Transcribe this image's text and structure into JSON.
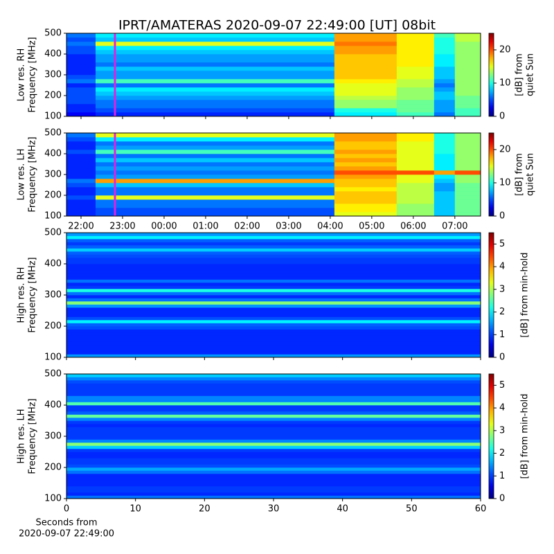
{
  "chart_data": [
    {
      "type": "heatmap",
      "title": "IPRT/AMATERAS 2020-09-07 22:49:00 [UT]   08bit",
      "ylabel": [
        "Low res. RH",
        "Frequency [MHz]"
      ],
      "xlim": [
        21.65,
        31.62
      ],
      "ylim": [
        100,
        500
      ],
      "yticks": [
        100,
        200,
        300,
        400,
        500
      ],
      "x_edges": [
        21.65,
        22.35,
        28.1,
        29.6,
        30.5,
        31.0,
        31.62
      ],
      "cursor": {
        "x": 22.817,
        "color": "#e020e0"
      },
      "colorbar": {
        "label": [
          "[dB] from",
          "quiet Sun"
        ],
        "lim": [
          0,
          25
        ],
        "ticks": [
          0,
          10,
          20
        ],
        "colormap": "jet"
      },
      "values": [
        [
          3,
          4,
          9,
          11,
          6,
          11
        ],
        [
          4,
          5,
          10,
          12,
          7,
          11
        ],
        [
          4,
          6,
          13,
          12,
          7,
          12
        ],
        [
          5,
          6,
          13,
          12,
          7,
          12
        ],
        [
          5,
          7,
          14,
          13,
          8,
          12
        ],
        [
          5,
          8,
          15,
          13,
          8,
          13
        ],
        [
          5,
          9,
          15,
          13,
          7,
          13
        ],
        [
          4,
          6,
          15,
          14,
          6,
          13
        ],
        [
          6,
          11,
          16,
          14,
          7,
          13
        ],
        [
          5,
          7,
          17,
          15,
          8,
          13
        ],
        [
          4,
          7,
          17,
          15,
          8,
          13
        ],
        [
          4,
          8,
          17,
          15,
          8,
          13
        ],
        [
          4,
          6,
          17,
          16,
          9,
          13
        ],
        [
          4,
          7,
          17,
          16,
          9,
          13
        ],
        [
          4,
          7,
          17,
          16,
          9,
          13
        ],
        [
          5,
          8,
          18,
          16,
          10,
          13
        ],
        [
          5,
          9,
          18,
          16,
          10,
          13
        ],
        [
          6,
          15,
          19,
          16,
          10,
          13
        ],
        [
          5,
          8,
          18,
          16,
          10,
          14
        ],
        [
          6,
          9,
          18,
          16,
          11,
          14
        ]
      ]
    },
    {
      "type": "heatmap",
      "ylabel": [
        "Low res. LH",
        "Frequency [MHz]"
      ],
      "xlim": [
        21.65,
        31.62
      ],
      "ylim": [
        100,
        500
      ],
      "yticks": [
        100,
        200,
        300,
        400,
        500
      ],
      "xticks": [
        {
          "value": 22,
          "label": "22:00"
        },
        {
          "value": 23,
          "label": "23:00"
        },
        {
          "value": 24,
          "label": "00:00"
        },
        {
          "value": 25,
          "label": "01:00"
        },
        {
          "value": 26,
          "label": "02:00"
        },
        {
          "value": 27,
          "label": "03:00"
        },
        {
          "value": 28,
          "label": "04:00"
        },
        {
          "value": 29,
          "label": "05:00"
        },
        {
          "value": 30,
          "label": "06:00"
        },
        {
          "value": 31,
          "label": "07:00"
        }
      ],
      "x_edges": [
        21.65,
        22.35,
        28.1,
        29.6,
        30.5,
        31.0,
        31.62
      ],
      "cursor": {
        "x": 22.817,
        "color": "#e020e0"
      },
      "colorbar": {
        "label": [
          "[dB] from",
          "quiet Sun"
        ],
        "lim": [
          0,
          25
        ],
        "ticks": [
          0,
          10,
          20
        ],
        "colormap": "jet"
      },
      "values": [
        [
          4,
          5,
          15,
          13,
          8,
          12
        ],
        [
          4,
          5,
          16,
          13,
          8,
          12
        ],
        [
          4,
          6,
          16,
          13,
          8,
          12
        ],
        [
          4,
          6,
          17,
          14,
          8,
          12
        ],
        [
          5,
          15,
          17,
          14,
          8,
          12
        ],
        [
          4,
          6,
          17,
          14,
          8,
          12
        ],
        [
          4,
          6,
          16,
          14,
          7,
          12
        ],
        [
          5,
          8,
          17,
          14,
          7,
          12
        ],
        [
          6,
          18,
          17,
          15,
          8,
          13
        ],
        [
          4,
          7,
          18,
          15,
          9,
          13
        ],
        [
          4,
          6,
          20,
          20,
          18,
          20
        ],
        [
          4,
          7,
          18,
          15,
          9,
          13
        ],
        [
          4,
          6,
          17,
          15,
          9,
          13
        ],
        [
          4,
          8,
          18,
          15,
          9,
          13
        ],
        [
          4,
          6,
          17,
          15,
          9,
          13
        ],
        [
          5,
          11,
          18,
          15,
          10,
          13
        ],
        [
          4,
          7,
          17,
          15,
          10,
          13
        ],
        [
          4,
          6,
          17,
          15,
          10,
          13
        ],
        [
          5,
          9,
          18,
          16,
          10,
          13
        ],
        [
          6,
          15,
          18,
          16,
          10,
          13
        ]
      ]
    },
    {
      "type": "heatmap",
      "ylabel": [
        "High res. RH",
        "Frequency [MHz]"
      ],
      "xlim": [
        0,
        60
      ],
      "ylim": [
        100,
        500
      ],
      "yticks": [
        100,
        200,
        300,
        400,
        500
      ],
      "x_edges": [
        0,
        60
      ],
      "colorbar": {
        "label": [
          "[dB] from min-hold"
        ],
        "lim": [
          0,
          5.5
        ],
        "ticks": [
          0,
          1,
          2,
          3,
          4,
          5
        ],
        "colormap": "jet"
      },
      "values": [
        [
          1.5
        ],
        [
          0.9
        ],
        [
          0.9
        ],
        [
          0.9
        ],
        [
          0.9
        ],
        [
          0.9
        ],
        [
          0.9
        ],
        [
          0.9
        ],
        [
          0.9
        ],
        [
          1.1
        ],
        [
          1.2
        ],
        [
          2.0
        ],
        [
          1.1
        ],
        [
          0.9
        ],
        [
          0.9
        ],
        [
          0.9
        ],
        [
          1.5
        ],
        [
          2.8
        ],
        [
          1.3
        ],
        [
          0.9
        ],
        [
          1.3
        ],
        [
          2.2
        ],
        [
          1.0
        ],
        [
          0.9
        ],
        [
          1.3
        ],
        [
          0.9
        ],
        [
          0.9
        ],
        [
          0.9
        ],
        [
          0.9
        ],
        [
          0.9
        ],
        [
          1.0
        ],
        [
          1.0
        ],
        [
          1.1
        ],
        [
          1.2
        ],
        [
          1.8
        ],
        [
          1.2
        ],
        [
          1.0
        ],
        [
          1.2
        ],
        [
          2.0
        ],
        [
          1.5
        ]
      ]
    },
    {
      "type": "heatmap",
      "ylabel": [
        "High res. LH",
        "Frequency [MHz]"
      ],
      "xlabel": [
        "Seconds from",
        "2020-09-07 22:49:00"
      ],
      "xlim": [
        0,
        60
      ],
      "ylim": [
        100,
        500
      ],
      "yticks": [
        100,
        200,
        300,
        400,
        500
      ],
      "xticks": [
        0,
        10,
        20,
        30,
        40,
        50,
        60
      ],
      "x_edges": [
        0,
        60
      ],
      "colorbar": {
        "label": [
          "[dB] from min-hold"
        ],
        "lim": [
          0,
          5.5
        ],
        "ticks": [
          0,
          1,
          2,
          3,
          4,
          5
        ],
        "colormap": "jet"
      },
      "values": [
        [
          1.3
        ],
        [
          0.9
        ],
        [
          1.0
        ],
        [
          1.0
        ],
        [
          0.9
        ],
        [
          0.9
        ],
        [
          0.9
        ],
        [
          0.9
        ],
        [
          1.3
        ],
        [
          1.6
        ],
        [
          1.1
        ],
        [
          1.0
        ],
        [
          1.0
        ],
        [
          0.9
        ],
        [
          0.9
        ],
        [
          1.0
        ],
        [
          1.8
        ],
        [
          2.8
        ],
        [
          1.4
        ],
        [
          1.0
        ],
        [
          1.0
        ],
        [
          1.0
        ],
        [
          1.0
        ],
        [
          0.9
        ],
        [
          1.0
        ],
        [
          1.4
        ],
        [
          2.6
        ],
        [
          1.2
        ],
        [
          1.0
        ],
        [
          1.0
        ],
        [
          2.5
        ],
        [
          1.4
        ],
        [
          1.4
        ],
        [
          1.0
        ],
        [
          1.0
        ],
        [
          1.0
        ],
        [
          1.0
        ],
        [
          1.1
        ],
        [
          1.4
        ],
        [
          1.8
        ]
      ]
    }
  ]
}
